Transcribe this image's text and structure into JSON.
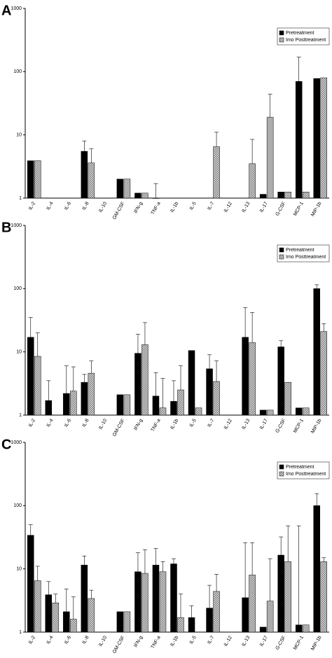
{
  "chart_data": [
    {
      "type": "bar",
      "label": "A",
      "log_scale": true,
      "legend": "upper right",
      "ylim": [
        1,
        1000
      ],
      "yticks": [
        1,
        10,
        100,
        1000
      ],
      "categories": [
        "IL-2",
        "IL-4",
        "IL-6",
        "IL-8",
        "IL-10",
        "GM-CSF",
        "IFN-g",
        "TNF-a",
        "IL-1b",
        "IL-5",
        "IL-7",
        "IL-12",
        "IL-13",
        "IL-17",
        "G-CSF",
        "MCP-1",
        "MIP-1b"
      ],
      "series": [
        {
          "name": "Pretreatment",
          "color": "#000000",
          "values": [
            3.9,
            null,
            null,
            5.5,
            null,
            2.0,
            1.2,
            1.0,
            null,
            null,
            null,
            null,
            null,
            1.15,
            1.25,
            70,
            78
          ],
          "errors": [
            null,
            null,
            null,
            2.5,
            null,
            null,
            null,
            0.7,
            null,
            null,
            null,
            null,
            null,
            null,
            null,
            100,
            null
          ]
        },
        {
          "name": "Imo Posttreatment",
          "color": "#d0d0d0",
          "values": [
            3.9,
            null,
            null,
            3.6,
            null,
            2.0,
            1.2,
            null,
            null,
            null,
            6.5,
            null,
            3.5,
            19,
            1.25,
            1.25,
            80
          ],
          "errors": [
            null,
            null,
            null,
            2.4,
            null,
            null,
            null,
            null,
            null,
            null,
            4.5,
            null,
            5,
            25,
            null,
            null,
            null
          ]
        }
      ]
    },
    {
      "type": "bar",
      "label": "B",
      "log_scale": true,
      "legend": "upper right",
      "ylim": [
        1,
        1000
      ],
      "yticks": [
        1,
        10,
        100,
        1000
      ],
      "categories": [
        "IL-2",
        "IL-4",
        "IL-6",
        "IL-8",
        "IL-10",
        "GM-CSF",
        "IFN-g",
        "TNF-a",
        "IL-1b",
        "IL-5",
        "IL-7",
        "IL-12",
        "IL-13",
        "IL-17",
        "G-CSF",
        "MCP-1",
        "MIP-1b"
      ],
      "series": [
        {
          "name": "Pretreatment",
          "color": "#000000",
          "values": [
            17,
            1.7,
            2.2,
            3.3,
            null,
            2.1,
            9.5,
            2.0,
            1.65,
            10.5,
            5.4,
            null,
            17,
            1.2,
            12,
            1.3,
            100
          ],
          "errors": [
            18,
            1.8,
            3.8,
            1.1,
            null,
            null,
            9.5,
            2.7,
            1.85,
            null,
            3.6,
            null,
            33,
            null,
            3,
            null,
            15
          ]
        },
        {
          "name": "Imo Posttreatment",
          "color": "#d0d0d0",
          "values": [
            8.5,
            null,
            2.4,
            4.6,
            null,
            2.1,
            13,
            1.3,
            2.5,
            1.3,
            3.4,
            null,
            14,
            1.2,
            3.3,
            1.3,
            21
          ],
          "errors": [
            11.5,
            null,
            3.4,
            2.6,
            null,
            null,
            16,
            2.5,
            3.5,
            null,
            3.8,
            null,
            28,
            null,
            null,
            null,
            7
          ]
        }
      ]
    },
    {
      "type": "bar",
      "label": "C",
      "log_scale": true,
      "legend": "upper right",
      "ylim": [
        1,
        1000
      ],
      "yticks": [
        1,
        10,
        100,
        1000
      ],
      "categories": [
        "IL-2",
        "IL-4",
        "IL-6",
        "IL-8",
        "IL-10",
        "GM-CSF",
        "IFN-g",
        "TNF-a",
        "IL-1b",
        "IL-5",
        "IL-7",
        "IL-12",
        "IL-13",
        "IL-17",
        "G-CSF",
        "MCP-1",
        "MIP-1b"
      ],
      "series": [
        {
          "name": "Pretreatment",
          "color": "#000000",
          "values": [
            34,
            3.9,
            2.1,
            11.5,
            null,
            2.1,
            9,
            11.5,
            12,
            1.7,
            2.4,
            null,
            3.5,
            1.2,
            16.5,
            1.3,
            100
          ],
          "errors": [
            16,
            2.4,
            2.7,
            4.5,
            null,
            null,
            9,
            9.5,
            2.5,
            0.9,
            3.1,
            null,
            22.5,
            null,
            15.5,
            46.7,
            55
          ]
        },
        {
          "name": "Imo Posttreatment",
          "color": "#d0d0d0",
          "values": [
            6.5,
            2.9,
            1.6,
            3.4,
            null,
            2.1,
            8.5,
            9,
            1.7,
            null,
            4.4,
            null,
            8,
            3.1,
            13,
            1.3,
            13
          ],
          "errors": [
            4.5,
            1.1,
            2,
            1.2,
            null,
            null,
            11.5,
            4,
            2.3,
            null,
            3.8,
            null,
            18,
            11.4,
            35,
            null,
            2
          ]
        }
      ]
    }
  ]
}
